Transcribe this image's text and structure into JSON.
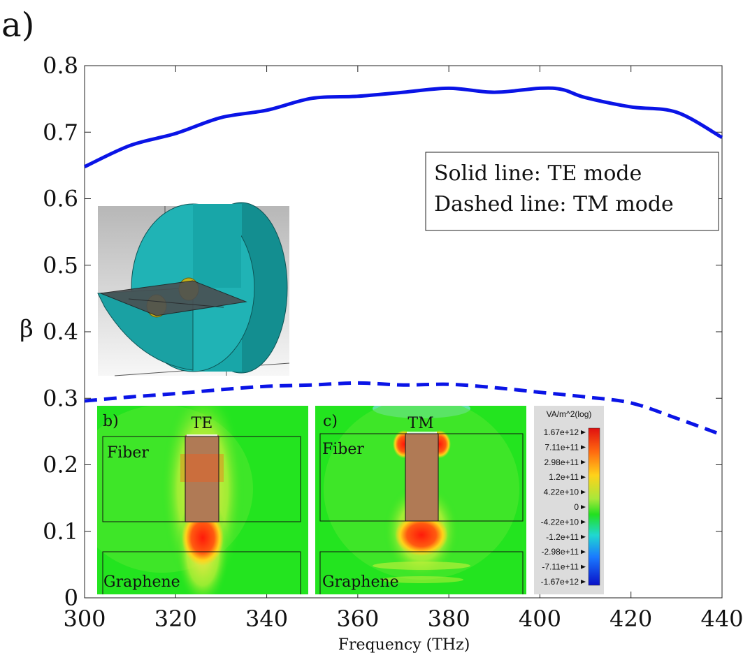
{
  "panel_label": "a)",
  "chart_data": {
    "type": "line",
    "title": "",
    "xlabel": "Frequency (THz)",
    "ylabel": "β",
    "xlim": [
      300,
      440
    ],
    "ylim": [
      0,
      0.8
    ],
    "x_ticks": [
      "300",
      "320",
      "340",
      "360",
      "380",
      "400",
      "420",
      "440"
    ],
    "y_ticks": [
      "0",
      "0.1",
      "0.2",
      "0.3",
      "0.4",
      "0.5",
      "0.6",
      "0.7",
      "0.8"
    ],
    "x_tick_values": [
      300,
      320,
      340,
      360,
      380,
      400,
      420,
      440
    ],
    "y_tick_values": [
      0,
      0.1,
      0.2,
      0.3,
      0.4,
      0.5,
      0.6,
      0.7,
      0.8
    ],
    "series": [
      {
        "name": "TE mode",
        "style": "solid",
        "color": "#0a14e6",
        "x": [
          300,
          310,
          320,
          330,
          340,
          350,
          360,
          370,
          380,
          390,
          400,
          405,
          410,
          420,
          430,
          440
        ],
        "y": [
          0.648,
          0.68,
          0.698,
          0.722,
          0.733,
          0.751,
          0.754,
          0.76,
          0.766,
          0.76,
          0.766,
          0.764,
          0.752,
          0.738,
          0.73,
          0.692
        ]
      },
      {
        "name": "TM mode",
        "style": "dashed",
        "color": "#0a14e6",
        "x": [
          300,
          310,
          320,
          330,
          340,
          350,
          360,
          370,
          380,
          390,
          400,
          410,
          420,
          430,
          440
        ],
        "y": [
          0.296,
          0.302,
          0.307,
          0.313,
          0.318,
          0.32,
          0.323,
          0.32,
          0.321,
          0.316,
          0.309,
          0.302,
          0.293,
          0.27,
          0.245
        ]
      }
    ],
    "legend": {
      "position": "right",
      "lines": [
        "Solid line: TE mode",
        "Dashed line: TM mode"
      ]
    }
  },
  "insets": {
    "b": {
      "label": "b)",
      "title": "TE",
      "region_top": "Fiber",
      "region_bottom": "Graphene"
    },
    "c": {
      "label": "c)",
      "title": "TM",
      "region_top": "Fiber",
      "region_bottom": "Graphene"
    }
  },
  "colorbar": {
    "title": "VA/m^2(log)",
    "ticks": [
      "1.67e+12",
      "7.11e+11",
      "2.98e+11",
      "1.2e+11",
      "4.22e+10",
      "0",
      "-4.22e+10",
      "-1.2e+11",
      "-2.98e+11",
      "-7.11e+11",
      "-1.67e+12"
    ]
  },
  "colors": {
    "line": "#0a14e6",
    "field_background": "#23e41f",
    "field_hot": "#ff1a0a",
    "core": "#b07a55",
    "fiber_model": "#18a6a8"
  }
}
